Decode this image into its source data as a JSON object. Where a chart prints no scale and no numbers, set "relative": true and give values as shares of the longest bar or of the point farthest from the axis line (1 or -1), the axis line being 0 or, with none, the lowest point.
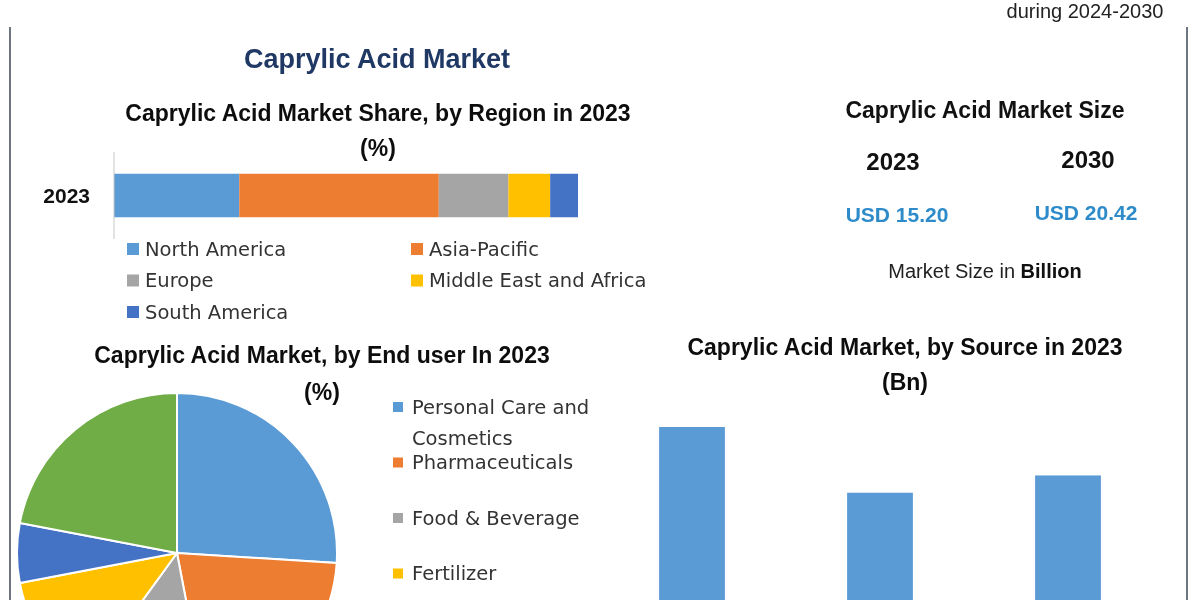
{
  "chart_data": [
    {
      "type": "other",
      "title": "Caprylic Acid Market",
      "annotations": [
        "during 2024-2030"
      ]
    },
    {
      "type": "bar",
      "orientation": "horizontal",
      "stacked": true,
      "relative": true,
      "title": "Caprylic Acid Market Share, by Region in 2023",
      "subtitle": "(%)",
      "categories": [
        "2023"
      ],
      "series": [
        {
          "name": "North America",
          "color": "#5b9bd5",
          "values": [
            0.27
          ]
        },
        {
          "name": "Asia-Pacific",
          "color": "#ed7d31",
          "values": [
            0.43
          ]
        },
        {
          "name": "Europe",
          "color": "#a5a5a5",
          "values": [
            0.15
          ]
        },
        {
          "name": "Middle East and Africa",
          "color": "#ffc000",
          "values": [
            0.09
          ]
        },
        {
          "name": "South America",
          "color": "#4472c4",
          "values": [
            0.06
          ]
        }
      ],
      "legend": "bottom"
    },
    {
      "type": "other",
      "title": "Caprylic Acid Market Size",
      "annotations": [
        "2023",
        "2030",
        "USD 15.20",
        "USD 20.42",
        "Market Size in Billion"
      ]
    },
    {
      "type": "pie",
      "title": "Caprylic Acid Market, by End user In 2023",
      "subtitle": "(%)",
      "categories": [
        "Personal Care and Cosmetics",
        "Pharmaceuticals",
        "Food & Beverage",
        "Fertilizer",
        null,
        null
      ],
      "values": [
        26,
        21,
        13,
        12,
        6,
        22
      ],
      "colors": [
        "#5b9bd5",
        "#ed7d31",
        "#a5a5a5",
        "#ffc000",
        "#4472c4",
        "#70ad47"
      ],
      "legend": "right"
    },
    {
      "type": "bar",
      "relative": true,
      "title": "Caprylic Acid Market, by Source in 2023",
      "subtitle": "(Bn)",
      "categories": [
        null,
        null,
        null
      ],
      "values": [
        1,
        0.62,
        0.72
      ],
      "color": "#5b9bd5"
    }
  ]
}
